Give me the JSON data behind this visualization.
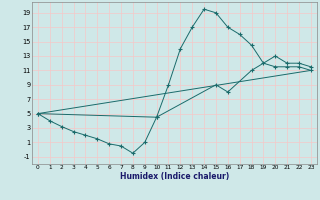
{
  "xlabel": "Humidex (Indice chaleur)",
  "bg_color": "#cfe8e8",
  "grid_color": "#f5c8c8",
  "line_color": "#1a6b6b",
  "line1_x": [
    0,
    1,
    2,
    3,
    4,
    5,
    6,
    7,
    8,
    9,
    10,
    11,
    12,
    13,
    14,
    15,
    16,
    17,
    18,
    19,
    20,
    21,
    22,
    23
  ],
  "line1_y": [
    5,
    4,
    3.2,
    2.5,
    2,
    1.5,
    0.8,
    0.5,
    -0.5,
    1,
    4.5,
    9,
    14,
    17,
    19.5,
    19,
    17,
    16,
    14.5,
    12,
    11.5,
    11.5,
    11.5,
    11
  ],
  "line2_x": [
    0,
    10,
    15,
    16,
    18,
    20,
    21,
    22,
    23
  ],
  "line2_y": [
    5,
    4.5,
    9,
    8,
    11,
    13,
    12,
    12,
    11.5
  ],
  "line3_x": [
    0,
    23
  ],
  "line3_y": [
    5,
    11
  ],
  "xlim": [
    -0.5,
    23.5
  ],
  "ylim": [
    -2,
    20.5
  ],
  "yticks": [
    -1,
    1,
    3,
    5,
    7,
    9,
    11,
    13,
    15,
    17,
    19
  ],
  "xticks": [
    0,
    1,
    2,
    3,
    4,
    5,
    6,
    7,
    8,
    9,
    10,
    11,
    12,
    13,
    14,
    15,
    16,
    17,
    18,
    19,
    20,
    21,
    22,
    23
  ]
}
